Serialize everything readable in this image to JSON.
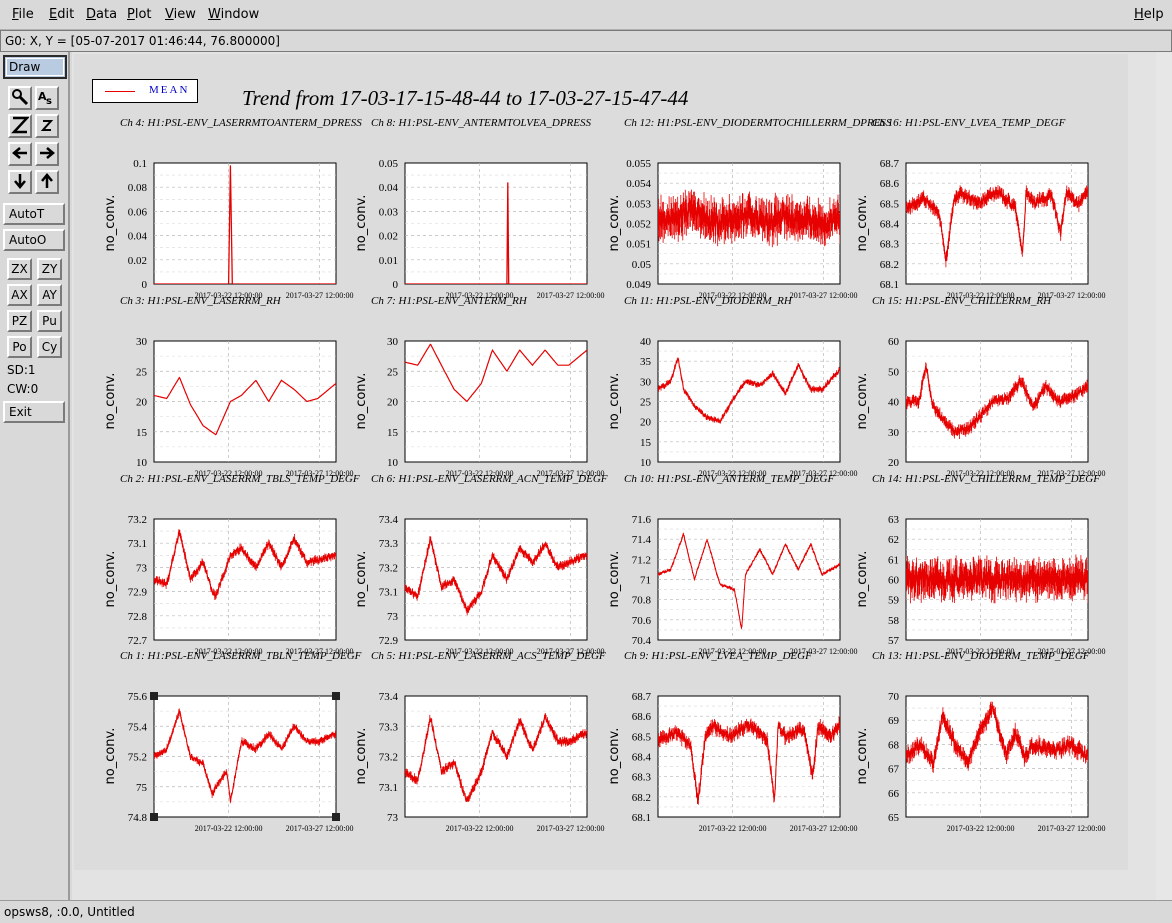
{
  "menubar": {
    "file": "File",
    "edit": "Edit",
    "data": "Data",
    "plot": "Plot",
    "view": "View",
    "window": "Window",
    "help": "Help"
  },
  "coord_readout": "G0: X, Y = [05-07-2017 01:46:44, 76.800000]",
  "toolbar": {
    "draw": "Draw",
    "autot": "AutoT",
    "autoo": "AutoO",
    "zx": "ZX",
    "zy": "ZY",
    "ax": "AX",
    "ay": "AY",
    "pz": "PZ",
    "pu": "Pu",
    "po": "Po",
    "cy": "Cy",
    "sd": "SD:1",
    "cw": "CW:0",
    "exit": "Exit",
    "icons": [
      "pointer-icon",
      "text-tool-icon",
      "zoom-large-icon",
      "zoom-small-icon",
      "arrow-left-icon",
      "arrow-right-icon",
      "arrow-down-icon",
      "arrow-up-icon"
    ]
  },
  "legend": {
    "label": "MEAN",
    "color": "#e60000"
  },
  "title": "Trend from 17-03-17-15-48-44 to 17-03-27-15-47-44",
  "status": "opsws8, :0.0, Untitled",
  "colors": {
    "series": "#e60000",
    "grid": "#b8b8b8",
    "background": "#dcdcdc"
  },
  "chart_data": [
    {
      "type": "line",
      "title": "Ch 4: H1:PSL-ENV_LASERRMTOANTERM_DPRESS",
      "ylabel": "no_conv.",
      "ylim": [
        0,
        0.1
      ],
      "yticks": [
        "0",
        "0.02",
        "0.04",
        "0.06",
        "0.08",
        "0.1"
      ],
      "xticks": [
        "2017-03-22 12:00:00",
        "2017-03-27 12:00:00"
      ],
      "x": [
        0,
        0.41,
        0.42,
        0.43,
        1
      ],
      "series": [
        {
          "name": "MEAN",
          "values": [
            0,
            0,
            0.098,
            0,
            0
          ]
        }
      ]
    },
    {
      "type": "line",
      "title": "Ch 8: H1:PSL-ENV_ANTERMTOLVEA_DPRESS",
      "ylabel": "no_conv.",
      "ylim": [
        0,
        0.05
      ],
      "yticks": [
        "0",
        "0.01",
        "0.02",
        "0.03",
        "0.04",
        "0.05"
      ],
      "xticks": [
        "2017-03-22 12:00:00",
        "2017-03-27 12:00:00"
      ],
      "x": [
        0,
        0.56,
        0.565,
        0.57,
        1
      ],
      "series": [
        {
          "name": "MEAN",
          "values": [
            0,
            0,
            0.042,
            0,
            0
          ]
        }
      ]
    },
    {
      "type": "line",
      "title": "Ch 12: H1:PSL-ENV_DIODERMTOCHILLERRM_DPRESS",
      "ylabel": "no_conv.",
      "ylim": [
        0.049,
        0.055
      ],
      "yticks": [
        "0.049",
        "0.05",
        "0.051",
        "0.052",
        "0.053",
        "0.054",
        "0.055"
      ],
      "xticks": [
        "2017-03-22 12:00:00",
        "2017-03-27 12:00:00"
      ],
      "x": [
        0,
        0.1,
        0.2,
        0.3,
        0.4,
        0.5,
        0.6,
        0.7,
        0.8,
        0.9,
        1
      ],
      "series": [
        {
          "name": "MEAN",
          "values": [
            0.0522,
            0.0523,
            0.0527,
            0.0521,
            0.0522,
            0.0524,
            0.0521,
            0.0523,
            0.0522,
            0.0521,
            0.0522
          ]
        }
      ],
      "band": 0.0017
    },
    {
      "type": "line",
      "title": "Ch 16: H1:PSL-ENV_LVEA_TEMP_DEGF",
      "ylabel": "no_conv.",
      "ylim": [
        68.1,
        68.7
      ],
      "yticks": [
        "68.1",
        "68.2",
        "68.3",
        "68.4",
        "68.5",
        "68.6",
        "68.7"
      ],
      "xticks": [
        "2017-03-22 12:00:00",
        "2017-03-27 12:00:00"
      ],
      "x": [
        0,
        0.1,
        0.18,
        0.22,
        0.26,
        0.3,
        0.4,
        0.5,
        0.6,
        0.64,
        0.66,
        0.7,
        0.8,
        0.85,
        0.88,
        0.95,
        1
      ],
      "series": [
        {
          "name": "MEAN",
          "values": [
            68.48,
            68.52,
            68.45,
            68.22,
            68.5,
            68.55,
            68.5,
            68.56,
            68.48,
            68.25,
            68.55,
            68.5,
            68.54,
            68.35,
            68.55,
            68.5,
            68.56
          ]
        }
      ],
      "band": 0.06
    },
    {
      "type": "line",
      "title": "Ch 3: H1:PSL-ENV_LASERRM_RH",
      "ylabel": "no_conv.",
      "ylim": [
        10,
        30
      ],
      "yticks": [
        "10",
        "15",
        "20",
        "25",
        "30"
      ],
      "xticks": [
        "2017-03-22 12:00:00",
        "2017-03-27 12:00:00"
      ],
      "x": [
        0,
        0.07,
        0.14,
        0.2,
        0.27,
        0.34,
        0.42,
        0.48,
        0.56,
        0.63,
        0.7,
        0.77,
        0.84,
        0.9,
        1
      ],
      "series": [
        {
          "name": "MEAN",
          "values": [
            21,
            20.5,
            24,
            19.5,
            16,
            14.5,
            20,
            21,
            23.5,
            20,
            23.5,
            22,
            20,
            20.5,
            23
          ]
        }
      ]
    },
    {
      "type": "line",
      "title": "Ch 7: H1:PSL-ENV_ANTERM_RH",
      "ylabel": "no_conv.",
      "ylim": [
        10,
        30
      ],
      "yticks": [
        "10",
        "15",
        "20",
        "25",
        "30"
      ],
      "xticks": [
        "2017-03-22 12:00:00",
        "2017-03-27 12:00:00"
      ],
      "x": [
        0,
        0.07,
        0.14,
        0.2,
        0.27,
        0.34,
        0.42,
        0.48,
        0.56,
        0.63,
        0.7,
        0.77,
        0.84,
        0.9,
        1
      ],
      "series": [
        {
          "name": "MEAN",
          "values": [
            26.5,
            26,
            29.5,
            26,
            22,
            20,
            23,
            28.5,
            25,
            28.5,
            26,
            28.5,
            26,
            26,
            28.5
          ]
        }
      ]
    },
    {
      "type": "line",
      "title": "Ch 11: H1:PSL-ENV_DIODERM_RH",
      "ylabel": "no_conv.",
      "ylim": [
        10,
        40
      ],
      "yticks": [
        "10",
        "15",
        "20",
        "25",
        "30",
        "35",
        "40"
      ],
      "xticks": [
        "2017-03-22 12:00:00",
        "2017-03-27 12:00:00"
      ],
      "x": [
        0,
        0.07,
        0.11,
        0.14,
        0.2,
        0.27,
        0.34,
        0.42,
        0.48,
        0.56,
        0.63,
        0.7,
        0.77,
        0.84,
        0.9,
        1
      ],
      "series": [
        {
          "name": "MEAN",
          "values": [
            28,
            30,
            36,
            28,
            24,
            21,
            20,
            26,
            30,
            29,
            32,
            27,
            34,
            28,
            28,
            33
          ]
        }
      ],
      "band": 1.2
    },
    {
      "type": "line",
      "title": "Ch 15: H1:PSL-ENV_CHILLERRM_RH",
      "ylabel": "no_conv.",
      "ylim": [
        20,
        60
      ],
      "yticks": [
        "20",
        "30",
        "40",
        "50",
        "60"
      ],
      "xticks": [
        "2017-03-22 12:00:00",
        "2017-03-27 12:00:00"
      ],
      "x": [
        0,
        0.07,
        0.11,
        0.14,
        0.2,
        0.27,
        0.34,
        0.42,
        0.48,
        0.56,
        0.63,
        0.7,
        0.77,
        0.84,
        0.9,
        1
      ],
      "series": [
        {
          "name": "MEAN",
          "values": [
            40,
            40,
            52,
            40,
            34,
            30,
            31,
            36,
            40,
            41,
            47,
            38,
            45,
            40,
            41,
            45
          ]
        }
      ],
      "band": 3.5
    },
    {
      "type": "line",
      "title": "Ch 2: H1:PSL-ENV_LASERRM_TBLS_TEMP_DEGF",
      "ylabel": "no_conv.",
      "ylim": [
        72.7,
        73.2
      ],
      "yticks": [
        "72.7",
        "72.8",
        "72.9",
        "73",
        "73.1",
        "73.2"
      ],
      "xticks": [
        "2017-03-22 12:00:00",
        "2017-03-27 12:00:00"
      ],
      "x": [
        0,
        0.07,
        0.14,
        0.2,
        0.27,
        0.32,
        0.34,
        0.42,
        0.48,
        0.56,
        0.63,
        0.7,
        0.77,
        0.84,
        0.9,
        1
      ],
      "series": [
        {
          "name": "MEAN",
          "values": [
            72.95,
            72.93,
            73.15,
            72.95,
            73.02,
            72.9,
            72.88,
            73.05,
            73.08,
            73.0,
            73.1,
            73.0,
            73.12,
            73.02,
            73.03,
            73.05
          ]
        }
      ],
      "band": 0.03
    },
    {
      "type": "line",
      "title": "Ch 6: H1:PSL-ENV_LASERRM_ACN_TEMP_DEGF",
      "ylabel": "no_conv.",
      "ylim": [
        72.9,
        73.4
      ],
      "yticks": [
        "72.9",
        "73",
        "73.1",
        "73.2",
        "73.3",
        "73.4"
      ],
      "xticks": [
        "2017-03-22 12:00:00",
        "2017-03-27 12:00:00"
      ],
      "x": [
        0,
        0.07,
        0.14,
        0.2,
        0.27,
        0.34,
        0.42,
        0.48,
        0.56,
        0.63,
        0.7,
        0.77,
        0.84,
        0.9,
        1
      ],
      "series": [
        {
          "name": "MEAN",
          "values": [
            73.12,
            73.08,
            73.32,
            73.12,
            73.15,
            73.02,
            73.1,
            73.25,
            73.15,
            73.28,
            73.22,
            73.3,
            73.2,
            73.22,
            73.25
          ]
        }
      ],
      "band": 0.03
    },
    {
      "type": "line",
      "title": "Ch 10: H1:PSL-ENV_ANTERM_TEMP_DEGF",
      "ylabel": "no_conv.",
      "ylim": [
        70.4,
        71.6
      ],
      "yticks": [
        "70.4",
        "70.6",
        "70.8",
        "71",
        "71.2",
        "71.4",
        "71.6"
      ],
      "xticks": [
        "2017-03-22 12:00:00",
        "2017-03-27 12:00:00"
      ],
      "x": [
        0,
        0.07,
        0.14,
        0.2,
        0.27,
        0.34,
        0.42,
        0.46,
        0.48,
        0.56,
        0.63,
        0.7,
        0.77,
        0.84,
        0.9,
        1
      ],
      "series": [
        {
          "name": "MEAN",
          "values": [
            71.05,
            71.1,
            71.45,
            71.0,
            71.4,
            70.95,
            70.9,
            70.5,
            71.05,
            71.3,
            71.05,
            71.35,
            71.1,
            71.35,
            71.05,
            71.15
          ]
        }
      ],
      "band": 0.03
    },
    {
      "type": "line",
      "title": "Ch 14: H1:PSL-ENV_CHILLERRM_TEMP_DEGF",
      "ylabel": "no_conv.",
      "ylim": [
        57,
        63
      ],
      "yticks": [
        "57",
        "58",
        "59",
        "60",
        "61",
        "62",
        "63"
      ],
      "xticks": [
        "2017-03-22 12:00:00",
        "2017-03-27 12:00:00"
      ],
      "x": [
        0,
        0.2,
        0.4,
        0.6,
        0.8,
        1
      ],
      "series": [
        {
          "name": "MEAN",
          "values": [
            60,
            60,
            60,
            60,
            60,
            60
          ]
        }
      ],
      "band": 1.6
    },
    {
      "type": "line",
      "title": "Ch 1: H1:PSL-ENV_LASERRM_TBLN_TEMP_DEGF",
      "ylabel": "no_conv.",
      "ylim": [
        74.8,
        75.6
      ],
      "yticks": [
        "74.8",
        "75",
        "75.2",
        "75.4",
        "75.6"
      ],
      "xticks": [
        "2017-03-22 12:00:00",
        "2017-03-27 12:00:00"
      ],
      "x": [
        0,
        0.07,
        0.14,
        0.2,
        0.27,
        0.32,
        0.34,
        0.4,
        0.42,
        0.48,
        0.56,
        0.63,
        0.7,
        0.77,
        0.84,
        0.9,
        1
      ],
      "series": [
        {
          "name": "MEAN",
          "values": [
            75.2,
            75.25,
            75.5,
            75.2,
            75.15,
            74.95,
            75.0,
            75.1,
            74.9,
            75.3,
            75.25,
            75.35,
            75.25,
            75.4,
            75.3,
            75.3,
            75.35
          ]
        }
      ],
      "band": 0.04
    },
    {
      "type": "line",
      "title": "Ch 5: H1:PSL-ENV_LASERRM_ACS_TEMP_DEGF",
      "ylabel": "no_conv.",
      "ylim": [
        73,
        73.4
      ],
      "yticks": [
        "73",
        "73.1",
        "73.2",
        "73.3",
        "73.4"
      ],
      "xticks": [
        "2017-03-22 12:00:00",
        "2017-03-27 12:00:00"
      ],
      "x": [
        0,
        0.07,
        0.14,
        0.2,
        0.27,
        0.34,
        0.42,
        0.48,
        0.56,
        0.63,
        0.7,
        0.77,
        0.84,
        0.9,
        1
      ],
      "series": [
        {
          "name": "MEAN",
          "values": [
            73.15,
            73.12,
            73.33,
            73.15,
            73.18,
            73.05,
            73.15,
            73.28,
            73.2,
            73.32,
            73.22,
            73.33,
            73.25,
            73.25,
            73.28
          ]
        }
      ],
      "band": 0.025
    },
    {
      "type": "line",
      "title": "Ch 9: H1:PSL-ENV_LVEA_TEMP_DEGF",
      "ylabel": "no_conv.",
      "ylim": [
        68.1,
        68.7
      ],
      "yticks": [
        "68.1",
        "68.2",
        "68.3",
        "68.4",
        "68.5",
        "68.6",
        "68.7"
      ],
      "xticks": [
        "2017-03-22 12:00:00",
        "2017-03-27 12:00:00"
      ],
      "x": [
        0,
        0.1,
        0.18,
        0.22,
        0.26,
        0.3,
        0.4,
        0.5,
        0.6,
        0.64,
        0.66,
        0.7,
        0.8,
        0.85,
        0.88,
        0.95,
        1
      ],
      "series": [
        {
          "name": "MEAN",
          "values": [
            68.48,
            68.52,
            68.45,
            68.18,
            68.5,
            68.55,
            68.5,
            68.56,
            68.48,
            68.18,
            68.55,
            68.5,
            68.54,
            68.3,
            68.55,
            68.5,
            68.56
          ]
        }
      ],
      "band": 0.06
    },
    {
      "type": "line",
      "title": "Ch 13: H1:PSL-ENV_DIODERM_TEMP_DEGF",
      "ylabel": "no_conv.",
      "ylim": [
        65,
        70
      ],
      "yticks": [
        "65",
        "66",
        "67",
        "68",
        "69",
        "70"
      ],
      "xticks": [
        "2017-03-22 12:00:00",
        "2017-03-27 12:00:00"
      ],
      "x": [
        0,
        0.08,
        0.15,
        0.2,
        0.27,
        0.34,
        0.4,
        0.48,
        0.55,
        0.6,
        0.65,
        0.7,
        0.77,
        0.84,
        0.9,
        1
      ],
      "series": [
        {
          "name": "MEAN",
          "values": [
            67.5,
            68,
            67.2,
            69.2,
            68,
            67.2,
            68.5,
            69.5,
            67.5,
            68.5,
            67.5,
            68,
            67.8,
            67.8,
            68,
            67.5
          ]
        }
      ],
      "band": 0.6
    }
  ]
}
